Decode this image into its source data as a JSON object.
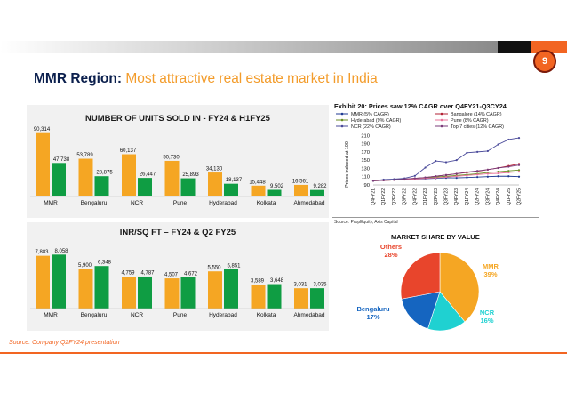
{
  "slide": {
    "page_number": "9",
    "title_bold": "MMR Region:",
    "title_rest": " Most attractive real estate market in India",
    "source": "Source: Company Q2FY24 presentation"
  },
  "colors": {
    "fy24": "#f5a623",
    "h1fy25": "#0f9d43",
    "orange": "#f26522",
    "navy": "#0b1f4d"
  },
  "chart_data": [
    {
      "type": "bar",
      "title": "NUMBER OF UNITS SOLD IN - FY24 & H1FY25",
      "categories": [
        "MMR",
        "Bengaluru",
        "NCR",
        "Pune",
        "Hyderabad",
        "Kolkata",
        "Ahmedabad"
      ],
      "series": [
        {
          "values": [
            90314,
            53789,
            60137,
            50730,
            34130,
            15448,
            16561
          ]
        },
        {
          "values": [
            47738,
            28875,
            26447,
            25893,
            18137,
            9502,
            9282
          ]
        }
      ],
      "labels": [
        [
          "90,314",
          "53,789",
          "60,137",
          "50,730",
          "34,130",
          "15,448",
          "16,561"
        ],
        [
          "47,738",
          "28,875",
          "26,447",
          "25,893",
          "18,137",
          "9,502",
          "9,282"
        ]
      ],
      "ylim": [
        0,
        95000
      ]
    },
    {
      "type": "bar",
      "title": "INR/SQ FT – FY24 & Q2 FY25",
      "categories": [
        "MMR",
        "Bengaluru",
        "NCR",
        "Pune",
        "Hyderabad",
        "Kolkata",
        "Ahmedabad"
      ],
      "series": [
        {
          "values": [
            7883,
            5900,
            4759,
            4507,
            5550,
            3589,
            3031
          ]
        },
        {
          "values": [
            8058,
            6348,
            4787,
            4672,
            5851,
            3648,
            3035
          ]
        }
      ],
      "labels": [
        [
          "7,883",
          "5,900",
          "4,759",
          "4,507",
          "5,550",
          "3,589",
          "3,031"
        ],
        [
          "8,058",
          "6,348",
          "4,787",
          "4,672",
          "5,851",
          "3,648",
          "3,035"
        ]
      ],
      "ylim": [
        0,
        8500
      ]
    },
    {
      "type": "line",
      "title": "Exhibit 20: Prices saw 12% CAGR over Q4FY21-Q3CY24",
      "ylabel": "Prices indexed at 100",
      "source": "Source: PropEquity, Axis Capital",
      "x": [
        "Q4FY21",
        "Q1FY22",
        "Q2FY22",
        "Q3FY22",
        "Q4FY22",
        "Q1FY23",
        "Q2FY23",
        "Q3FY23",
        "Q4FY23",
        "Q1FY24",
        "Q2FY24",
        "Q3FY24",
        "Q4FY24",
        "Q1FY25",
        "Q2FY25"
      ],
      "yticks": [
        90,
        110,
        130,
        150,
        170,
        190,
        210
      ],
      "ylim": [
        90,
        215
      ],
      "series": [
        {
          "name": "MMR (5% CAGR)",
          "color": "#1f3a93",
          "marker": "diamond",
          "values": [
            100,
            102,
            103,
            104,
            104,
            105,
            106,
            107,
            107,
            108,
            109,
            110,
            111,
            111,
            110
          ]
        },
        {
          "name": "Bangalore (14% CAGR)",
          "color": "#b22234",
          "marker": "square",
          "values": [
            100,
            101,
            102,
            104,
            106,
            108,
            111,
            114,
            117,
            120,
            123,
            127,
            131,
            136,
            141
          ]
        },
        {
          "name": "Hyderabad (9% CAGR)",
          "color": "#6b8e23",
          "marker": "triangle",
          "values": [
            100,
            101,
            102,
            103,
            105,
            107,
            109,
            111,
            113,
            115,
            117,
            120,
            122,
            124,
            126
          ]
        },
        {
          "name": "Pune (8% CAGR)",
          "color": "#e8739a",
          "marker": "square-open",
          "values": [
            100,
            101,
            102,
            103,
            104,
            106,
            107,
            109,
            111,
            113,
            115,
            117,
            118,
            120,
            122
          ]
        },
        {
          "name": "NCR (22% CAGR)",
          "color": "#4a4a9a",
          "marker": "x",
          "values": [
            100,
            103,
            104,
            106,
            112,
            132,
            148,
            145,
            150,
            168,
            170,
            172,
            188,
            200,
            204
          ]
        },
        {
          "name": "Top 7 cities (12% CAGR)",
          "color": "#7a3b7a",
          "marker": "circle",
          "values": [
            100,
            101,
            102,
            104,
            106,
            108,
            111,
            114,
            117,
            121,
            124,
            127,
            131,
            134,
            138
          ]
        }
      ]
    },
    {
      "type": "pie",
      "title": "MARKET SHARE BY VALUE",
      "slices": [
        {
          "label": "MMR",
          "value": 39,
          "text": "39%",
          "color": "#f5a623"
        },
        {
          "label": "NCR",
          "value": 16,
          "text": "16%",
          "color": "#1fd1d1"
        },
        {
          "label": "Bengaluru",
          "value": 17,
          "text": "17%",
          "color": "#1565c0"
        },
        {
          "label": "Others",
          "value": 28,
          "text": "28%",
          "color": "#e8452c"
        }
      ]
    }
  ]
}
